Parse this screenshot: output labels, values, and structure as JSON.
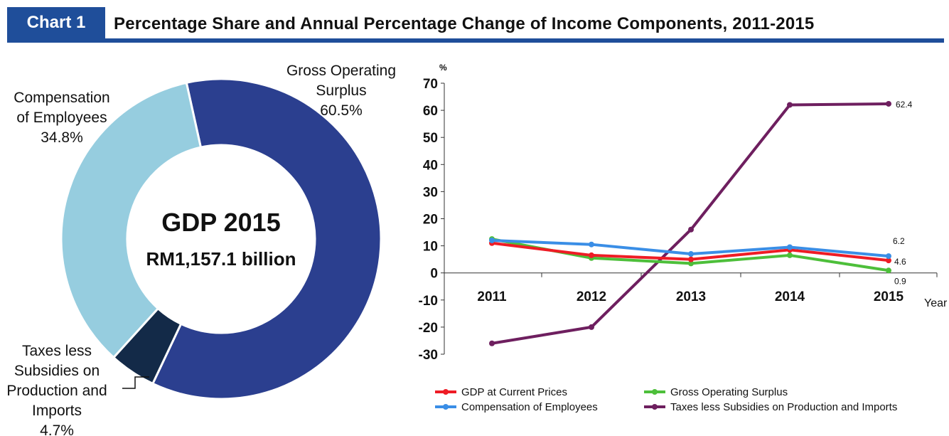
{
  "header": {
    "tag": "Chart 1",
    "title": "Percentage Share and Annual Percentage Change of Income Components, 2011-2015"
  },
  "chart_data": [
    {
      "type": "pie",
      "variant": "donut",
      "center_title": "GDP 2015",
      "center_subtitle": "RM1,157.1 billion",
      "slices": [
        {
          "label_lines": [
            "Gross Operating",
            "Surplus"
          ],
          "value": 60.5,
          "value_label": "60.5%",
          "color": "#2b3f8f"
        },
        {
          "label_lines": [
            "Taxes less",
            "Subsidies on",
            "Production and",
            "Imports"
          ],
          "value": 4.7,
          "value_label": "4.7%",
          "color": "#132a48"
        },
        {
          "label_lines": [
            "Compensation",
            "of Employees"
          ],
          "value": 34.8,
          "value_label": "34.8%",
          "color": "#96cddf"
        }
      ]
    },
    {
      "type": "line",
      "y_unit": "%",
      "xlabel": "Year",
      "ylim": [
        -30,
        70
      ],
      "yticks": [
        -30,
        -20,
        -10,
        0,
        10,
        20,
        30,
        40,
        50,
        60,
        70
      ],
      "x": [
        "2011",
        "2012",
        "2013",
        "2014",
        "2015"
      ],
      "grid": false,
      "legend_position": "bottom",
      "series": [
        {
          "name": "GDP at Current Prices",
          "color": "#ee1c25",
          "values": [
            11,
            6.5,
            5,
            8.5,
            4.6
          ],
          "end_label": "4.6"
        },
        {
          "name": "Gross Operating Surplus",
          "color": "#4dbf3a",
          "values": [
            12.5,
            5.5,
            3.5,
            6.5,
            0.9
          ],
          "end_label": "0.9"
        },
        {
          "name": "Compensation of Employees",
          "color": "#3a8ee6",
          "values": [
            12,
            10.5,
            7,
            9.5,
            6.2
          ],
          "end_label": "6.2"
        },
        {
          "name": "Taxes less Subsidies on Production and Imports",
          "color": "#6e1f5f",
          "values": [
            -26,
            -20,
            16,
            62,
            62.4
          ],
          "end_label": "62.4"
        }
      ]
    }
  ]
}
